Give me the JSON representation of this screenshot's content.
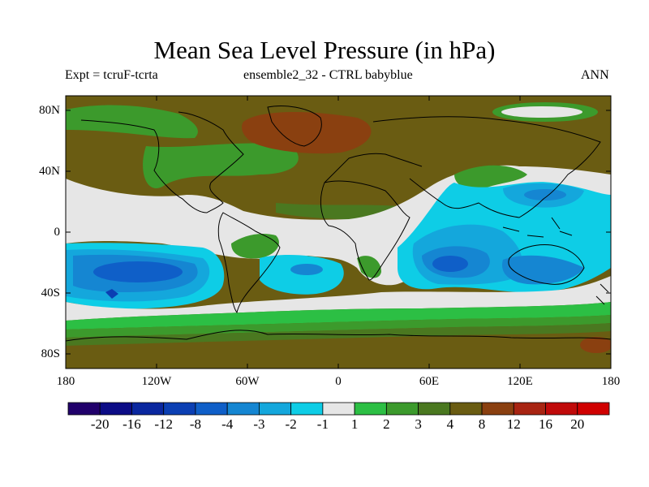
{
  "title": "Mean Sea Level Pressure (in hPa)",
  "subtitle_left": "Expt = tcruF-tcrta",
  "subtitle_center": "ensemble2_32 - CTRL babyblue",
  "subtitle_right": "ANN",
  "lat_labels": [
    "80N",
    "40N",
    "0",
    "40S",
    "80S"
  ],
  "lon_labels": [
    "180",
    "120W",
    "60W",
    "0",
    "60E",
    "120E",
    "180"
  ],
  "colorbar": {
    "labels": [
      "-20",
      "-16",
      "-12",
      "-8",
      "-4",
      "-3",
      "-2",
      "-1",
      "1",
      "2",
      "3",
      "4",
      "8",
      "12",
      "16",
      "20"
    ],
    "colors": [
      "#21006b",
      "#0c0c86",
      "#0a279f",
      "#0b3fb3",
      "#0f5fc8",
      "#1586d2",
      "#14a7dc",
      "#0ecde6",
      "#e6e6e6",
      "#2cbf44",
      "#3c9a2c",
      "#4a7820",
      "#6a5c12",
      "#8a4010",
      "#a82412",
      "#c00a0a",
      "#d00000"
    ]
  },
  "colors": {
    "land_outline": "#000000",
    "neutral": "#e6e6e6",
    "positive_1": "#2cbf44",
    "positive_2": "#3c9a2c",
    "positive_3": "#4a7820",
    "positive_4": "#6a5c12",
    "positive_5": "#8a4010",
    "negative_1": "#0ecde6",
    "negative_2": "#14a7dc",
    "negative_3": "#1586d2",
    "negative_4": "#0f5fc8",
    "negative_5": "#0b3fb3"
  }
}
